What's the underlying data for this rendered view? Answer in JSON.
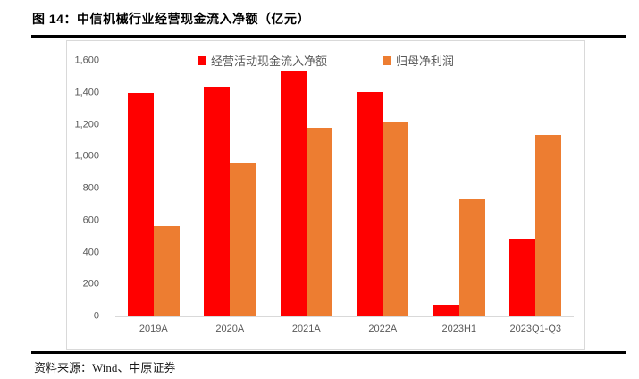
{
  "figure": {
    "title": "图 14：中信机械行业经营现金流入净额（亿元）"
  },
  "footer": {
    "source_label": "资料来源：",
    "source_text": "Wind、中原证券"
  },
  "chart_data": {
    "type": "bar",
    "title": "中信机械行业经营现金流入净额（亿元）",
    "unit": "亿元",
    "categories": [
      "2019A",
      "2020A",
      "2021A",
      "2022A",
      "2023H1",
      "2023Q1-Q3"
    ],
    "series": [
      {
        "name": "经营活动现金流入净额",
        "color": "#FF0000",
        "values": [
          1400,
          1440,
          1540,
          1405,
          70,
          485
        ]
      },
      {
        "name": "归母净利润",
        "color": "#ED7D31",
        "values": [
          565,
          960,
          1180,
          1220,
          735,
          1135
        ]
      }
    ],
    "ylim": [
      0,
      1600
    ],
    "ytick_step": 200,
    "yticks": [
      {
        "label": "0",
        "value": 0
      },
      {
        "label": "200",
        "value": 200
      },
      {
        "label": "400",
        "value": 400
      },
      {
        "label": "600",
        "value": 600
      },
      {
        "label": "800",
        "value": 800
      },
      {
        "label": "1,000",
        "value": 1000
      },
      {
        "label": "1,200",
        "value": 1200
      },
      {
        "label": "1,400",
        "value": 1400
      },
      {
        "label": "1,600",
        "value": 1600
      }
    ],
    "grid": false,
    "legend_position": "top-center",
    "axis_color": "#D9D9D9",
    "label_color": "#595959"
  }
}
